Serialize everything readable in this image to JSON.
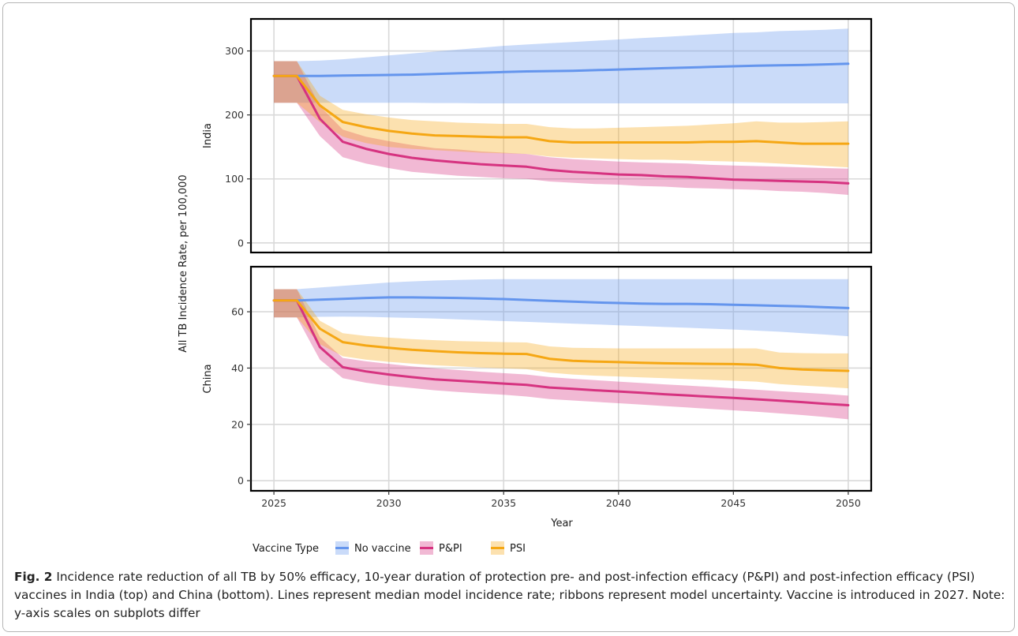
{
  "figure": {
    "label": "Fig. 2",
    "caption": "Incidence rate reduction of all TB by 50% efficacy, 10-year duration of protection pre- and post-infection efficacy (P&PI) and post-infection efficacy (PSI) vaccines in India (top) and China (bottom). Lines represent median model incidence rate; ribbons represent model uncertainty. Vaccine is introduced in 2027. Note: y-axis scales on subplots differ"
  },
  "colors": {
    "No vaccine": "#6495ED",
    "P&PI": "#D63380",
    "PSI": "#F5A714",
    "No vaccine ribbon": "#C6D6FB",
    "P&PI ribbon": "#F0B8D3",
    "PSI ribbon": "#FCE3B2",
    "grid": "#D9D9D9"
  },
  "chart_data": {
    "type": "line",
    "xlabel": "Year",
    "ylabel": "All TB Incidence Rate, per 100,000",
    "xlim": [
      2024,
      2051
    ],
    "xticks": [
      2025,
      2030,
      2035,
      2040,
      2045,
      2050
    ],
    "x": [
      2025,
      2026,
      2027,
      2028,
      2029,
      2030,
      2031,
      2032,
      2033,
      2034,
      2035,
      2036,
      2037,
      2038,
      2039,
      2040,
      2041,
      2042,
      2043,
      2044,
      2045,
      2046,
      2047,
      2048,
      2049,
      2050
    ],
    "legend": {
      "title": "Vaccine Type",
      "position": "bottom",
      "entries": [
        "No vaccine",
        "P&PI",
        "PSI"
      ]
    },
    "panels": [
      {
        "strip": "India",
        "ylim": [
          -15,
          350
        ],
        "yticks": [
          0,
          100,
          200,
          300
        ],
        "series": [
          {
            "name": "No vaccine",
            "median": [
              261,
              261,
              261,
              261.5,
              262,
              262.5,
              263,
              264,
              265,
              266,
              267,
              268,
              268.5,
              269,
              270,
              271,
              272,
              273,
              274,
              275,
              276,
              277,
              277.5,
              278,
              279,
              280
            ],
            "lower": [
              219,
              219,
              219,
              219,
              219,
              219,
              219,
              218.5,
              218.5,
              218,
              218,
              218,
              218,
              218,
              218,
              218,
              218,
              218,
              218,
              218,
              218,
              218,
              218,
              218,
              218,
              218
            ],
            "upper": [
              284,
              284,
              285,
              287,
              290,
              293,
              296,
              299,
              302,
              305,
              308,
              310,
              312,
              314,
              316,
              318,
              320,
              322,
              324,
              326,
              328,
              329,
              331,
              332,
              333,
              335
            ]
          },
          {
            "name": "P&PI",
            "median": [
              261,
              261,
              194,
              158,
              147,
              139,
              133,
              129,
              126,
              123,
              121,
              119,
              114,
              111,
              109,
              107,
              106,
              104,
              103,
              101,
              99,
              98,
              97,
              96,
              95,
              93
            ],
            "lower": [
              219,
              219,
              167,
              134,
              124,
              117,
              111,
              108,
              105,
              103,
              101,
              100,
              96,
              94,
              92,
              91,
              89,
              88,
              86,
              85,
              84,
              83,
              81,
              80,
              78,
              75
            ],
            "upper": [
              284,
              284,
              214,
              177,
              166,
              159,
              153,
              148,
              146,
              143,
              141,
              139,
              134,
              131,
              129,
              127,
              126,
              125,
              124,
              122,
              121,
              120,
              119,
              118,
              117,
              116
            ]
          },
          {
            "name": "PSI",
            "median": [
              261,
              261,
              215,
              189,
              181,
              175,
              171,
              168,
              167,
              166,
              165,
              165,
              159,
              157,
              157,
              157,
              157,
              157,
              157,
              158,
              158,
              159,
              157,
              155,
              155,
              155
            ],
            "lower": [
              219,
              219,
              189,
              166,
              156,
              150,
              147,
              145,
              143,
              141,
              140,
              139,
              135,
              133,
              132,
              131,
              130,
              130,
              129,
              128,
              127,
              126,
              124,
              122,
              120,
              118
            ],
            "upper": [
              284,
              284,
              230,
              208,
              201,
              196,
              192,
              190,
              188,
              187,
              186,
              186,
              181,
              179,
              179,
              180,
              181,
              182,
              183,
              185,
              187,
              190,
              188,
              188,
              189,
              190
            ]
          }
        ]
      },
      {
        "strip": "China",
        "ylim": [
          -3.6,
          76
        ],
        "yticks": [
          0,
          20,
          40,
          60
        ],
        "series": [
          {
            "name": "No vaccine",
            "median": [
              64,
              64,
              64.3,
              64.6,
              64.9,
              65.1,
              65.1,
              65.0,
              64.9,
              64.7,
              64.5,
              64.2,
              63.9,
              63.6,
              63.3,
              63.1,
              62.9,
              62.8,
              62.8,
              62.7,
              62.5,
              62.3,
              62.1,
              61.9,
              61.6,
              61.3
            ],
            "lower": [
              58,
              58,
              58.2,
              58.3,
              58.2,
              58.0,
              57.8,
              57.6,
              57.3,
              57.0,
              56.7,
              56.4,
              56.1,
              55.8,
              55.5,
              55.2,
              54.9,
              54.6,
              54.3,
              54.0,
              53.7,
              53.3,
              52.9,
              52.4,
              51.9,
              51.3
            ],
            "upper": [
              68,
              68,
              68.6,
              69.2,
              69.8,
              70.4,
              70.8,
              71.1,
              71.3,
              71.5,
              71.6,
              71.6,
              71.6,
              71.6,
              71.6,
              71.6,
              71.6,
              71.6,
              71.6,
              71.6,
              71.6,
              71.6,
              71.6,
              71.6,
              71.6,
              71.6
            ]
          },
          {
            "name": "P&PI",
            "median": [
              64,
              64,
              47.5,
              40.3,
              38.8,
              37.7,
              36.8,
              36.0,
              35.5,
              35.0,
              34.5,
              34.0,
              33.1,
              32.6,
              32.1,
              31.7,
              31.2,
              30.7,
              30.3,
              29.8,
              29.4,
              28.9,
              28.4,
              27.9,
              27.3,
              26.8
            ],
            "lower": [
              58,
              58,
              43.0,
              36.4,
              34.8,
              33.7,
              32.9,
              32.1,
              31.5,
              31.0,
              30.5,
              29.9,
              29.0,
              28.5,
              28.0,
              27.5,
              27.0,
              26.5,
              26.0,
              25.5,
              25.0,
              24.5,
              23.9,
              23.3,
              22.6,
              21.8
            ],
            "upper": [
              68,
              68,
              51.0,
              43.6,
              42.4,
              41.5,
              40.6,
              39.9,
              39.3,
              38.7,
              38.2,
              37.7,
              36.8,
              36.2,
              35.7,
              35.2,
              34.7,
              34.2,
              33.8,
              33.3,
              32.8,
              32.3,
              31.8,
              31.3,
              30.8,
              30.2
            ]
          },
          {
            "name": "PSI",
            "median": [
              64,
              64,
              54.0,
              49.2,
              48.0,
              47.2,
              46.5,
              46.0,
              45.6,
              45.3,
              45.1,
              45.0,
              43.3,
              42.6,
              42.3,
              42.1,
              41.9,
              41.7,
              41.6,
              41.5,
              41.4,
              41.2,
              40.0,
              39.5,
              39.2,
              39.0
            ],
            "lower": [
              58,
              58,
              48.5,
              44.2,
              43.0,
              42.2,
              41.6,
              41.0,
              40.6,
              40.2,
              39.9,
              39.6,
              38.4,
              37.7,
              37.3,
              37.0,
              36.7,
              36.4,
              36.1,
              35.8,
              35.5,
              35.2,
              34.3,
              33.8,
              33.3,
              32.8
            ],
            "upper": [
              68,
              68,
              56.8,
              52.4,
              51.4,
              50.8,
              50.3,
              49.9,
              49.6,
              49.4,
              49.2,
              49.1,
              47.7,
              47.2,
              47.1,
              47.0,
              47.0,
              47.0,
              47.0,
              47.0,
              47.0,
              47.0,
              45.5,
              45.3,
              45.2,
              45.2
            ]
          }
        ]
      }
    ]
  }
}
